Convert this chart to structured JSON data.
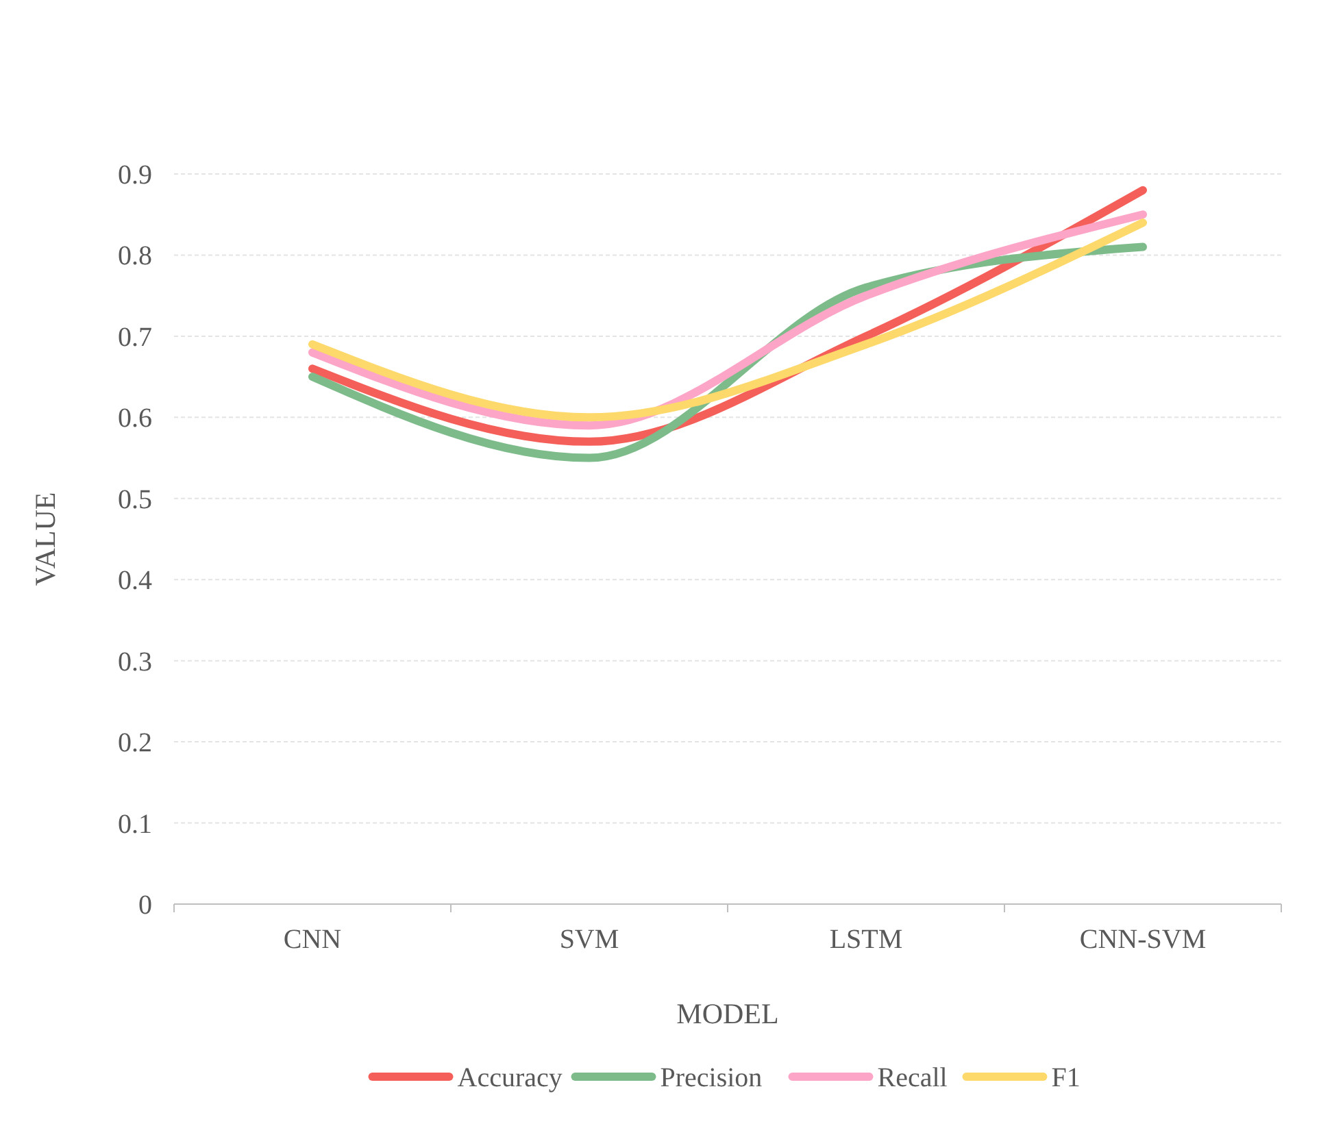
{
  "chart_data": {
    "type": "line",
    "xlabel": "MODEL",
    "ylabel": "VALUE",
    "categories": [
      "CNN",
      "SVM",
      "LSTM",
      "CNN-SVM"
    ],
    "series": [
      {
        "name": "Accuracy",
        "color": "#f55f5a",
        "values": [
          0.66,
          0.57,
          0.7,
          0.88
        ]
      },
      {
        "name": "Precision",
        "color": "#7dbb8a",
        "values": [
          0.65,
          0.55,
          0.76,
          0.81
        ]
      },
      {
        "name": "Recall",
        "color": "#fca5c6",
        "values": [
          0.68,
          0.59,
          0.75,
          0.85
        ]
      },
      {
        "name": "F1",
        "color": "#fdd96c",
        "values": [
          0.69,
          0.6,
          0.69,
          0.84
        ]
      }
    ],
    "ylim": [
      0,
      0.9
    ],
    "yticks": [
      0,
      0.1,
      0.2,
      0.3,
      0.4,
      0.5,
      0.6,
      0.7,
      0.8,
      0.9
    ],
    "grid": "y",
    "legend": "bottom",
    "marker": "none",
    "line_style": "solid"
  }
}
